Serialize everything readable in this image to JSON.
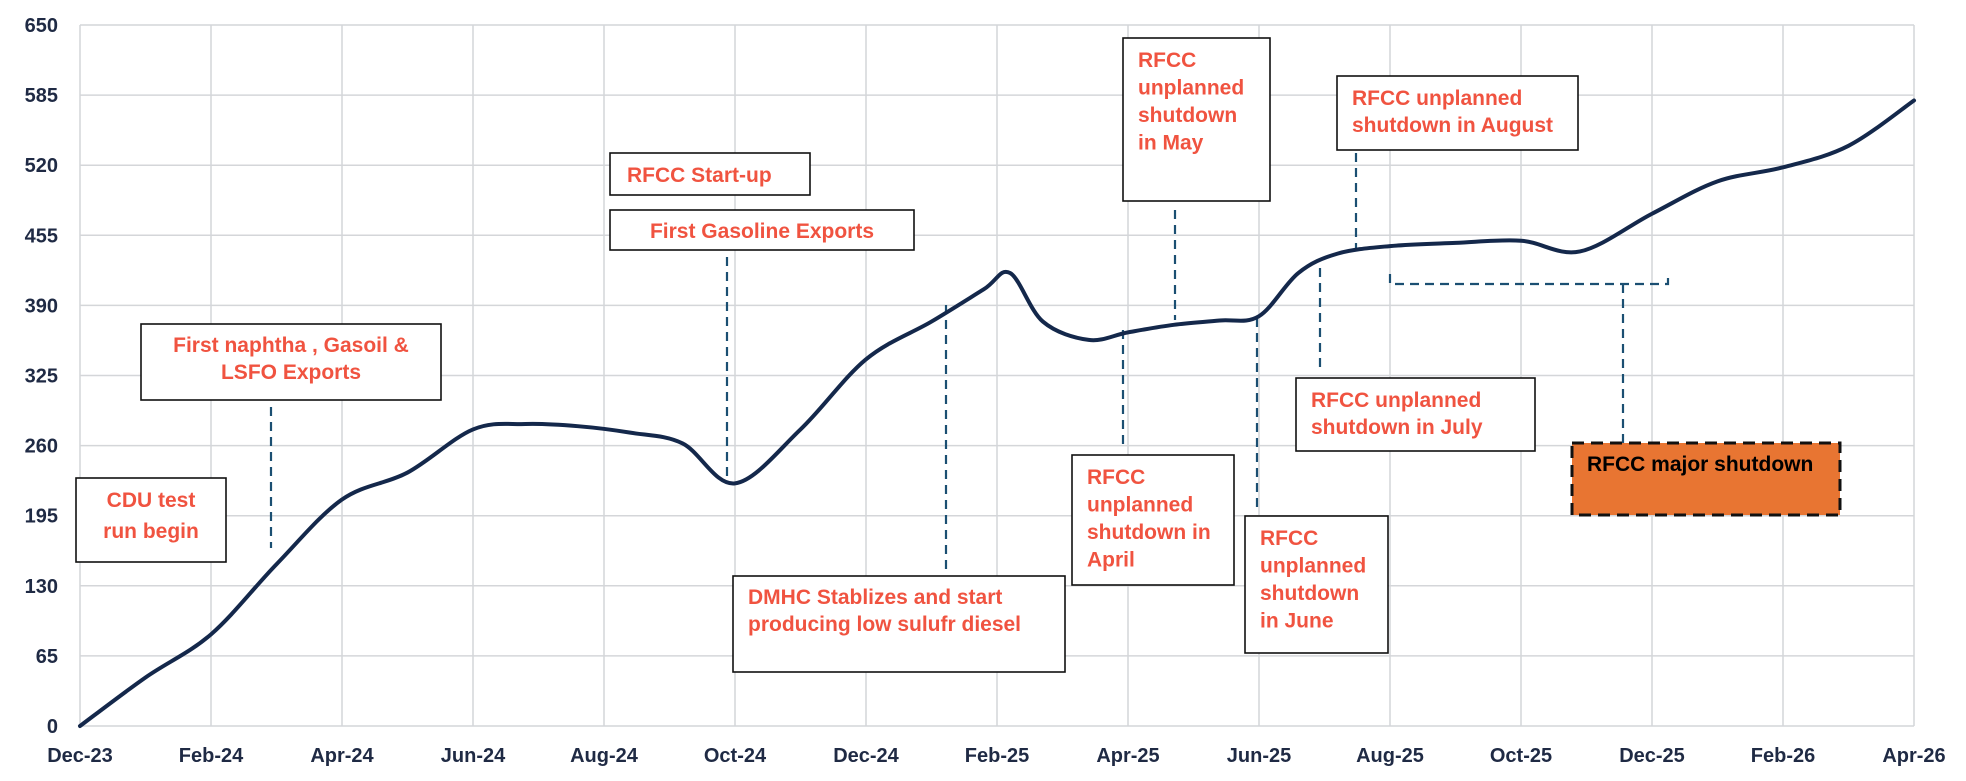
{
  "chart_data": {
    "type": "line",
    "title": "",
    "xlabel": "",
    "ylabel": "",
    "ylim": [
      0,
      650
    ],
    "yticks": [
      0,
      65,
      130,
      195,
      260,
      325,
      390,
      455,
      520,
      585,
      650
    ],
    "xticks": [
      "Dec-23",
      "Feb-24",
      "Apr-24",
      "Jun-24",
      "Aug-24",
      "Oct-24",
      "Dec-24",
      "Feb-25",
      "Apr-25",
      "Jun-25",
      "Aug-25",
      "Oct-25",
      "Dec-25",
      "Feb-26",
      "Apr-26"
    ],
    "grid": true,
    "line_color": "#14284b",
    "series": [
      {
        "x": [
          0,
          0.5,
          1,
          1.5,
          2,
          2.5,
          3,
          3.4,
          3.8,
          4.2,
          4.6,
          5,
          5.5,
          6,
          6.5,
          6.9,
          7.1,
          7.35,
          7.7,
          8,
          8.35,
          8.7,
          9,
          9.3,
          9.6,
          10,
          10.5,
          11,
          11.45,
          12,
          12.5,
          13,
          13.5,
          14
        ],
        "y": [
          0,
          45,
          85,
          150,
          210,
          235,
          275,
          280,
          278,
          272,
          262,
          225,
          275,
          340,
          375,
          405,
          420,
          375,
          358,
          365,
          372,
          376,
          380,
          420,
          438,
          445,
          448,
          450,
          440,
          475,
          505,
          518,
          538,
          580
        ]
      }
    ],
    "annotations": [
      {
        "text": [
          "CDU test",
          "run begin"
        ],
        "color": "#f05340",
        "fill": "#ffffff",
        "x": 0.55
      },
      {
        "text": [
          "First naphtha , Gasoil &",
          "LSFO Exports"
        ],
        "color": "#f05340",
        "fill": "#ffffff",
        "x": 1.5
      },
      {
        "text": [
          "RFCC Start-up"
        ],
        "color": "#f05340",
        "fill": "#ffffff",
        "x": 4.6
      },
      {
        "text": [
          "First Gasoline Exports"
        ],
        "color": "#f05340",
        "fill": "#ffffff",
        "x": 4.95
      },
      {
        "text": [
          "DMHC Stablizes and start",
          "producing low sulufr diesel"
        ],
        "color": "#f05340",
        "fill": "#ffffff",
        "x": 6.6
      },
      {
        "text": [
          "RFCC",
          "unplanned",
          "shutdown",
          "in May"
        ],
        "color": "#f05340",
        "fill": "#ffffff",
        "x": 8.35
      },
      {
        "text": [
          "RFCC unplanned",
          "shutdown in August"
        ],
        "color": "#f05340",
        "fill": "#ffffff",
        "x": 9.7
      },
      {
        "text": [
          "RFCC unplanned",
          "shutdown in July"
        ],
        "color": "#f05340",
        "fill": "#ffffff",
        "x": 9.5
      },
      {
        "text": [
          "RFCC",
          "unplanned",
          "shutdown in",
          "April"
        ],
        "color": "#f05340",
        "fill": "#ffffff",
        "x": 7.95
      },
      {
        "text": [
          "RFCC",
          "unplanned",
          "shutdown",
          "in June"
        ],
        "color": "#f05340",
        "fill": "#ffffff",
        "x": 9.0
      },
      {
        "text": [
          "RFCC major shutdown"
        ],
        "color": "#000000",
        "fill": "#e87532",
        "x": 11.8
      }
    ]
  }
}
